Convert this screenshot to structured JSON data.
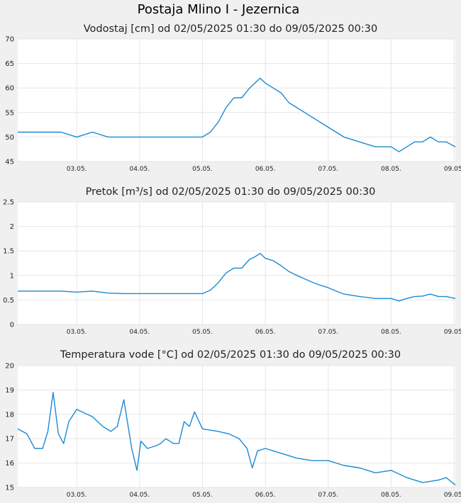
{
  "page_title": "Postaja Mlino I - Jezernica",
  "colors": {
    "series": "#1a8ad4",
    "plot_bg": "#ffffff",
    "page_bg": "#f0f0f0",
    "grid": "#e6e6e6"
  },
  "chart_data": [
    {
      "type": "line",
      "title": "Vodostaj [cm] od 02/05/2025 01:30 do 09/05/2025 00:30",
      "xlabel": "",
      "ylabel": "",
      "ylim": [
        45,
        70
      ],
      "yticks": [
        "45",
        "50",
        "55",
        "60",
        "65",
        "70"
      ],
      "xlim": [
        "2025-05-02 01:30",
        "2025-05-09 00:30"
      ],
      "xticks": [
        {
          "t": "2025-05-03 00:00",
          "label": "03.05."
        },
        {
          "t": "2025-05-04 00:00",
          "label": "04.05."
        },
        {
          "t": "2025-05-05 00:00",
          "label": "05.05."
        },
        {
          "t": "2025-05-06 00:00",
          "label": "06.05."
        },
        {
          "t": "2025-05-07 00:00",
          "label": "07.05."
        },
        {
          "t": "2025-05-08 00:00",
          "label": "08.05."
        },
        {
          "t": "2025-05-09 00:00",
          "label": "09.05."
        }
      ],
      "grid": true,
      "series": [
        {
          "x": [
            "2025-05-02 01:30",
            "2025-05-02 06:00",
            "2025-05-02 12:00",
            "2025-05-02 18:00",
            "2025-05-03 00:00",
            "2025-05-03 06:00",
            "2025-05-03 12:00",
            "2025-05-03 18:00",
            "2025-05-04 00:00",
            "2025-05-04 06:00",
            "2025-05-04 12:00",
            "2025-05-04 18:00",
            "2025-05-05 00:00",
            "2025-05-05 03:00",
            "2025-05-05 06:00",
            "2025-05-05 09:00",
            "2025-05-05 12:00",
            "2025-05-05 15:00",
            "2025-05-05 18:00",
            "2025-05-05 20:00",
            "2025-05-05 22:00",
            "2025-05-06 00:00",
            "2025-05-06 03:00",
            "2025-05-06 06:00",
            "2025-05-06 09:00",
            "2025-05-06 12:00",
            "2025-05-06 15:00",
            "2025-05-06 18:00",
            "2025-05-06 21:00",
            "2025-05-07 00:00",
            "2025-05-07 03:00",
            "2025-05-07 06:00",
            "2025-05-07 12:00",
            "2025-05-07 18:00",
            "2025-05-08 00:00",
            "2025-05-08 03:00",
            "2025-05-08 06:00",
            "2025-05-08 09:00",
            "2025-05-08 12:00",
            "2025-05-08 15:00",
            "2025-05-08 18:00",
            "2025-05-08 21:00",
            "2025-05-09 00:30"
          ],
          "values": [
            51,
            51,
            51,
            51,
            50,
            51,
            50,
            50,
            50,
            50,
            50,
            50,
            50,
            51,
            53,
            56,
            58,
            58,
            60,
            61,
            62,
            61,
            60,
            59,
            57,
            56,
            55,
            54,
            53,
            52,
            51,
            50,
            49,
            48,
            48,
            47,
            48,
            49,
            49,
            50,
            49,
            49,
            48
          ]
        }
      ]
    },
    {
      "type": "line",
      "title": "Pretok [m³/s] od 02/05/2025 01:30 do 09/05/2025 00:30",
      "xlabel": "",
      "ylabel": "",
      "ylim": [
        0,
        2.5
      ],
      "yticks": [
        "0",
        "0.5",
        "1",
        "1.5",
        "2",
        "2.5"
      ],
      "xlim": [
        "2025-05-02 01:30",
        "2025-05-09 00:30"
      ],
      "xticks": [
        {
          "t": "2025-05-03 00:00",
          "label": "03.05."
        },
        {
          "t": "2025-05-04 00:00",
          "label": "04.05."
        },
        {
          "t": "2025-05-05 00:00",
          "label": "05.05."
        },
        {
          "t": "2025-05-06 00:00",
          "label": "06.05."
        },
        {
          "t": "2025-05-07 00:00",
          "label": "07.05."
        },
        {
          "t": "2025-05-08 00:00",
          "label": "08.05."
        },
        {
          "t": "2025-05-09 00:00",
          "label": "09.05."
        }
      ],
      "grid": true,
      "series": [
        {
          "x": [
            "2025-05-02 01:30",
            "2025-05-02 06:00",
            "2025-05-02 12:00",
            "2025-05-02 18:00",
            "2025-05-03 00:00",
            "2025-05-03 06:00",
            "2025-05-03 12:00",
            "2025-05-03 18:00",
            "2025-05-04 00:00",
            "2025-05-04 06:00",
            "2025-05-04 12:00",
            "2025-05-04 18:00",
            "2025-05-05 00:00",
            "2025-05-05 03:00",
            "2025-05-05 06:00",
            "2025-05-05 09:00",
            "2025-05-05 12:00",
            "2025-05-05 15:00",
            "2025-05-05 18:00",
            "2025-05-05 20:00",
            "2025-05-05 22:00",
            "2025-05-06 00:00",
            "2025-05-06 03:00",
            "2025-05-06 06:00",
            "2025-05-06 09:00",
            "2025-05-06 12:00",
            "2025-05-06 15:00",
            "2025-05-06 18:00",
            "2025-05-06 21:00",
            "2025-05-07 00:00",
            "2025-05-07 03:00",
            "2025-05-07 06:00",
            "2025-05-07 12:00",
            "2025-05-07 18:00",
            "2025-05-08 00:00",
            "2025-05-08 03:00",
            "2025-05-08 06:00",
            "2025-05-08 09:00",
            "2025-05-08 12:00",
            "2025-05-08 15:00",
            "2025-05-08 18:00",
            "2025-05-08 21:00",
            "2025-05-09 00:30"
          ],
          "values": [
            0.68,
            0.68,
            0.68,
            0.68,
            0.66,
            0.68,
            0.64,
            0.63,
            0.63,
            0.63,
            0.63,
            0.63,
            0.63,
            0.7,
            0.85,
            1.05,
            1.15,
            1.15,
            1.33,
            1.38,
            1.45,
            1.35,
            1.3,
            1.2,
            1.08,
            1.0,
            0.93,
            0.86,
            0.8,
            0.75,
            0.68,
            0.62,
            0.57,
            0.53,
            0.53,
            0.48,
            0.53,
            0.57,
            0.58,
            0.62,
            0.57,
            0.57,
            0.53
          ]
        }
      ]
    },
    {
      "type": "line",
      "title": "Temperatura vode [°C] od 02/05/2025 01:30 do 09/05/2025 00:30",
      "xlabel": "",
      "ylabel": "",
      "ylim": [
        15,
        20
      ],
      "yticks": [
        "15",
        "16",
        "17",
        "18",
        "19",
        "20"
      ],
      "xlim": [
        "2025-05-02 01:30",
        "2025-05-09 00:30"
      ],
      "xticks": [
        {
          "t": "2025-05-03 00:00",
          "label": "03.05."
        },
        {
          "t": "2025-05-04 00:00",
          "label": "04.05."
        },
        {
          "t": "2025-05-05 00:00",
          "label": "05.05."
        },
        {
          "t": "2025-05-06 00:00",
          "label": "06.05."
        },
        {
          "t": "2025-05-07 00:00",
          "label": "07.05."
        },
        {
          "t": "2025-05-08 00:00",
          "label": "08.05."
        },
        {
          "t": "2025-05-09 00:00",
          "label": "09.05."
        }
      ],
      "grid": true,
      "series": [
        {
          "x": [
            "2025-05-02 01:30",
            "2025-05-02 05:00",
            "2025-05-02 08:00",
            "2025-05-02 11:00",
            "2025-05-02 13:00",
            "2025-05-02 15:00",
            "2025-05-02 17:00",
            "2025-05-02 19:00",
            "2025-05-02 21:00",
            "2025-05-03 00:00",
            "2025-05-03 06:00",
            "2025-05-03 10:00",
            "2025-05-03 13:00",
            "2025-05-03 15:30",
            "2025-05-03 18:00",
            "2025-05-03 21:00",
            "2025-05-03 23:00",
            "2025-05-04 00:30",
            "2025-05-04 03:00",
            "2025-05-04 06:00",
            "2025-05-04 08:00",
            "2025-05-04 10:00",
            "2025-05-04 13:00",
            "2025-05-04 15:00",
            "2025-05-04 17:00",
            "2025-05-04 19:00",
            "2025-05-04 21:00",
            "2025-05-05 00:00",
            "2025-05-05 06:00",
            "2025-05-05 10:00",
            "2025-05-05 14:00",
            "2025-05-05 17:00",
            "2025-05-05 19:00",
            "2025-05-05 21:00",
            "2025-05-06 00:00",
            "2025-05-06 06:00",
            "2025-05-06 12:00",
            "2025-05-06 18:00",
            "2025-05-07 00:00",
            "2025-05-07 06:00",
            "2025-05-07 12:00",
            "2025-05-07 18:00",
            "2025-05-08 00:00",
            "2025-05-08 06:00",
            "2025-05-08 12:00",
            "2025-05-08 18:00",
            "2025-05-08 21:00",
            "2025-05-09 00:30"
          ],
          "values": [
            17.4,
            17.2,
            16.6,
            16.6,
            17.3,
            18.9,
            17.2,
            16.8,
            17.7,
            18.2,
            17.9,
            17.5,
            17.3,
            17.5,
            18.6,
            16.6,
            15.7,
            16.9,
            16.6,
            16.7,
            16.8,
            17.0,
            16.8,
            16.8,
            17.7,
            17.5,
            18.1,
            17.4,
            17.3,
            17.2,
            17.0,
            16.6,
            15.8,
            16.5,
            16.6,
            16.4,
            16.2,
            16.1,
            16.1,
            15.9,
            15.8,
            15.6,
            15.7,
            15.4,
            15.2,
            15.3,
            15.4,
            15.1
          ]
        }
      ]
    }
  ]
}
